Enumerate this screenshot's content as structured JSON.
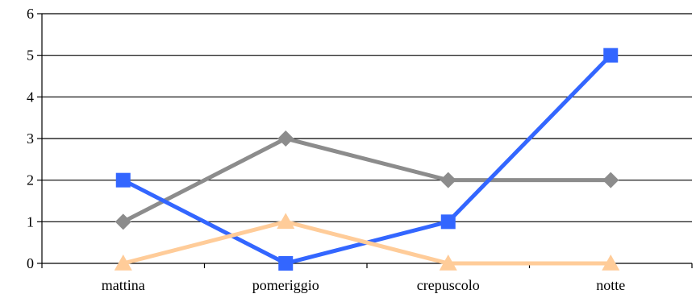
{
  "chart_data": {
    "type": "line",
    "categories": [
      "mattina",
      "pomeriggio",
      "crepuscolo",
      "notte"
    ],
    "series": [
      {
        "values": [
          1,
          3,
          2,
          2
        ],
        "color": "#8c8c8c",
        "marker": "diamond"
      },
      {
        "values": [
          2,
          0,
          1,
          5
        ],
        "color": "#3366ff",
        "marker": "square"
      },
      {
        "values": [
          0,
          1,
          0,
          0
        ],
        "color": "#ffcc99",
        "marker": "triangle"
      }
    ],
    "ylim": [
      0,
      6
    ],
    "yticks": [
      "0",
      "1",
      "2",
      "3",
      "4",
      "5",
      "6"
    ],
    "grid": true,
    "legend": "none"
  }
}
